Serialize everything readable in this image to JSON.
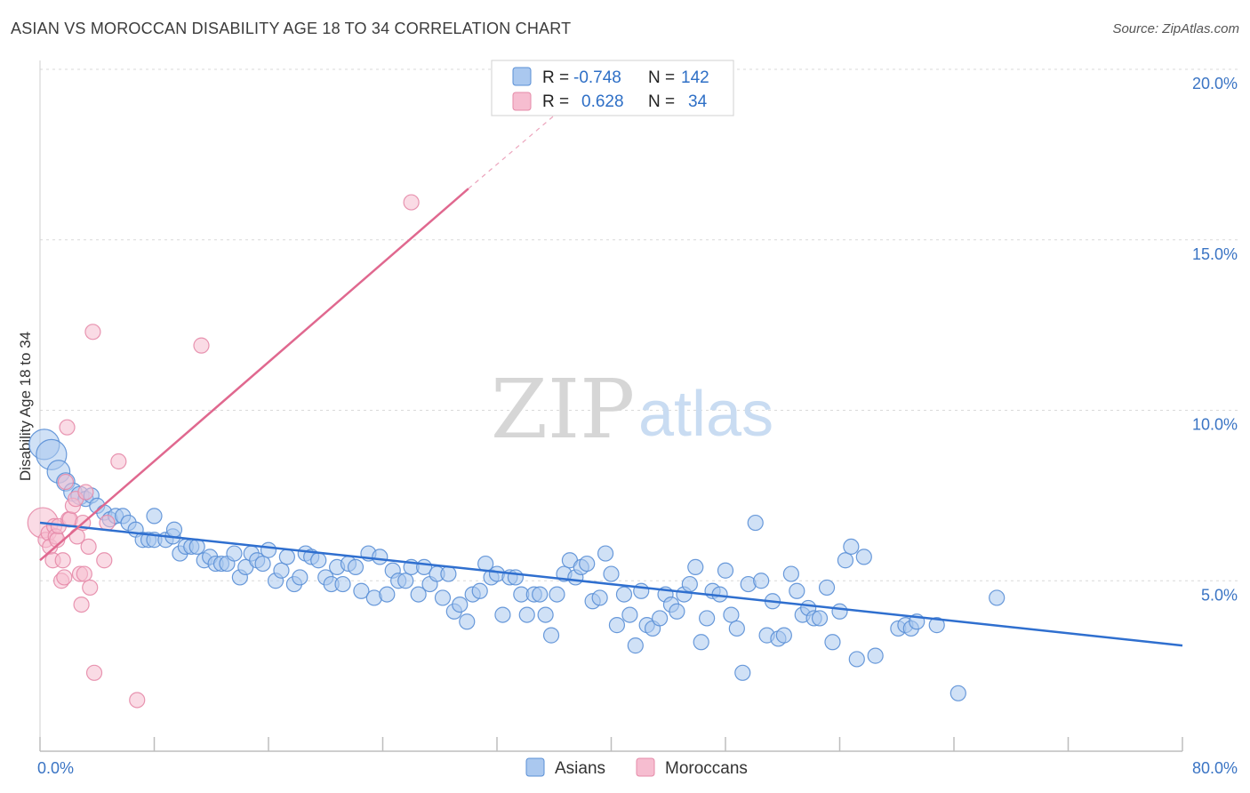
{
  "title": "ASIAN VS MOROCCAN DISABILITY AGE 18 TO 34 CORRELATION CHART",
  "source": "Source: ZipAtlas.com",
  "watermark": {
    "zip": "ZIP",
    "atlas": "atlas"
  },
  "colors": {
    "asian_fill": "#aac8ef",
    "asian_stroke": "#5a8fd6",
    "asian_line": "#2f6fcf",
    "moroccan_fill": "#f6bdd0",
    "moroccan_stroke": "#e58aa8",
    "moroccan_line": "#e0688f",
    "grid": "#d9d9d9",
    "axis_text": "#3a74c4"
  },
  "legend": {
    "rows": [
      {
        "r_label": "R = ",
        "r_value": "-0.748",
        "n_label": "N = ",
        "n_value": "142"
      },
      {
        "r_label": "R = ",
        "r_value": "0.628",
        "n_label": "N = ",
        "n_value": "34"
      }
    ]
  },
  "bottom_legend": [
    "Asians",
    "Moroccans"
  ],
  "chart_data": {
    "type": "scatter",
    "title": "ASIAN VS MOROCCAN DISABILITY AGE 18 TO 34 CORRELATION CHART",
    "xlabel": "",
    "ylabel": "Disability Age 18 to 34",
    "xlim": [
      0,
      80
    ],
    "ylim": [
      0,
      20
    ],
    "x_tick_labels": [
      "0.0%",
      "80.0%"
    ],
    "y_tick_values": [
      5,
      10,
      15,
      20
    ],
    "y_tick_labels": [
      "5.0%",
      "10.0%",
      "15.0%",
      "20.0%"
    ],
    "grid": "horizontal dashed",
    "legend_position": "top-center",
    "series": [
      {
        "name": "Asians",
        "r": -0.748,
        "n": 142,
        "trend": {
          "x": [
            0,
            80
          ],
          "y": [
            6.7,
            3.1
          ]
        },
        "points": [
          {
            "x": 0.3,
            "y": 9.0,
            "s": 2
          },
          {
            "x": 0.8,
            "y": 8.7,
            "s": 2
          },
          {
            "x": 1.3,
            "y": 8.2,
            "s": 1.5
          },
          {
            "x": 1.8,
            "y": 7.9,
            "s": 1.2
          },
          {
            "x": 2.3,
            "y": 7.6,
            "s": 1.2
          },
          {
            "x": 2.8,
            "y": 7.5,
            "s": 1.2
          },
          {
            "x": 3.2,
            "y": 7.4,
            "s": 1
          },
          {
            "x": 3.6,
            "y": 7.5,
            "s": 1
          },
          {
            "x": 4.0,
            "y": 7.2,
            "s": 1
          },
          {
            "x": 4.5,
            "y": 7.0,
            "s": 1
          },
          {
            "x": 4.9,
            "y": 6.8,
            "s": 1
          },
          {
            "x": 5.3,
            "y": 6.9,
            "s": 1
          },
          {
            "x": 5.8,
            "y": 6.9,
            "s": 1
          },
          {
            "x": 6.2,
            "y": 6.7,
            "s": 1
          },
          {
            "x": 6.7,
            "y": 6.5,
            "s": 1
          },
          {
            "x": 7.2,
            "y": 6.2,
            "s": 1
          },
          {
            "x": 7.6,
            "y": 6.2,
            "s": 1
          },
          {
            "x": 8.0,
            "y": 6.2,
            "s": 1
          },
          {
            "x": 8.0,
            "y": 6.9,
            "s": 1
          },
          {
            "x": 8.8,
            "y": 6.2,
            "s": 1
          },
          {
            "x": 9.3,
            "y": 6.3,
            "s": 1
          },
          {
            "x": 9.4,
            "y": 6.5,
            "s": 1
          },
          {
            "x": 9.8,
            "y": 5.8,
            "s": 1
          },
          {
            "x": 10.2,
            "y": 6.0,
            "s": 1
          },
          {
            "x": 10.6,
            "y": 6.0,
            "s": 1
          },
          {
            "x": 11.0,
            "y": 6.0,
            "s": 1
          },
          {
            "x": 11.5,
            "y": 5.6,
            "s": 1
          },
          {
            "x": 11.9,
            "y": 5.7,
            "s": 1
          },
          {
            "x": 12.3,
            "y": 5.5,
            "s": 1
          },
          {
            "x": 12.7,
            "y": 5.5,
            "s": 1
          },
          {
            "x": 13.1,
            "y": 5.5,
            "s": 1
          },
          {
            "x": 13.6,
            "y": 5.8,
            "s": 1
          },
          {
            "x": 14.0,
            "y": 5.1,
            "s": 1
          },
          {
            "x": 14.4,
            "y": 5.4,
            "s": 1
          },
          {
            "x": 14.8,
            "y": 5.8,
            "s": 1
          },
          {
            "x": 15.2,
            "y": 5.6,
            "s": 1
          },
          {
            "x": 15.6,
            "y": 5.5,
            "s": 1
          },
          {
            "x": 16.0,
            "y": 5.9,
            "s": 1
          },
          {
            "x": 16.5,
            "y": 5.0,
            "s": 1
          },
          {
            "x": 16.9,
            "y": 5.3,
            "s": 1
          },
          {
            "x": 17.3,
            "y": 5.7,
            "s": 1
          },
          {
            "x": 17.8,
            "y": 4.9,
            "s": 1
          },
          {
            "x": 18.2,
            "y": 5.1,
            "s": 1
          },
          {
            "x": 18.6,
            "y": 5.8,
            "s": 1
          },
          {
            "x": 19.0,
            "y": 5.7,
            "s": 1
          },
          {
            "x": 19.5,
            "y": 5.6,
            "s": 1
          },
          {
            "x": 20.0,
            "y": 5.1,
            "s": 1
          },
          {
            "x": 20.4,
            "y": 4.9,
            "s": 1
          },
          {
            "x": 20.8,
            "y": 5.4,
            "s": 1
          },
          {
            "x": 21.2,
            "y": 4.9,
            "s": 1
          },
          {
            "x": 21.6,
            "y": 5.5,
            "s": 1
          },
          {
            "x": 22.1,
            "y": 5.4,
            "s": 1
          },
          {
            "x": 22.5,
            "y": 4.7,
            "s": 1
          },
          {
            "x": 23.0,
            "y": 5.8,
            "s": 1
          },
          {
            "x": 23.4,
            "y": 4.5,
            "s": 1
          },
          {
            "x": 23.8,
            "y": 5.7,
            "s": 1
          },
          {
            "x": 24.3,
            "y": 4.6,
            "s": 1
          },
          {
            "x": 24.7,
            "y": 5.3,
            "s": 1
          },
          {
            "x": 25.1,
            "y": 5.0,
            "s": 1
          },
          {
            "x": 25.6,
            "y": 5.0,
            "s": 1
          },
          {
            "x": 26.0,
            "y": 5.4,
            "s": 1
          },
          {
            "x": 26.5,
            "y": 4.6,
            "s": 1
          },
          {
            "x": 26.9,
            "y": 5.4,
            "s": 1
          },
          {
            "x": 27.3,
            "y": 4.9,
            "s": 1
          },
          {
            "x": 27.8,
            "y": 5.2,
            "s": 1
          },
          {
            "x": 28.2,
            "y": 4.5,
            "s": 1
          },
          {
            "x": 28.6,
            "y": 5.2,
            "s": 1
          },
          {
            "x": 29.0,
            "y": 4.1,
            "s": 1
          },
          {
            "x": 29.4,
            "y": 4.3,
            "s": 1
          },
          {
            "x": 29.9,
            "y": 3.8,
            "s": 1
          },
          {
            "x": 30.3,
            "y": 4.6,
            "s": 1
          },
          {
            "x": 30.8,
            "y": 4.7,
            "s": 1
          },
          {
            "x": 31.2,
            "y": 5.5,
            "s": 1
          },
          {
            "x": 31.6,
            "y": 5.1,
            "s": 1
          },
          {
            "x": 32.0,
            "y": 5.2,
            "s": 1
          },
          {
            "x": 32.4,
            "y": 4.0,
            "s": 1
          },
          {
            "x": 32.9,
            "y": 5.1,
            "s": 1
          },
          {
            "x": 33.3,
            "y": 5.1,
            "s": 1
          },
          {
            "x": 33.7,
            "y": 4.6,
            "s": 1
          },
          {
            "x": 34.1,
            "y": 4.0,
            "s": 1
          },
          {
            "x": 34.6,
            "y": 4.6,
            "s": 1
          },
          {
            "x": 35.0,
            "y": 4.6,
            "s": 1
          },
          {
            "x": 35.4,
            "y": 4.0,
            "s": 1
          },
          {
            "x": 35.8,
            "y": 3.4,
            "s": 1
          },
          {
            "x": 36.2,
            "y": 4.6,
            "s": 1
          },
          {
            "x": 36.7,
            "y": 5.2,
            "s": 1
          },
          {
            "x": 37.1,
            "y": 5.6,
            "s": 1
          },
          {
            "x": 37.5,
            "y": 5.1,
            "s": 1
          },
          {
            "x": 37.9,
            "y": 5.4,
            "s": 1
          },
          {
            "x": 38.3,
            "y": 5.5,
            "s": 1
          },
          {
            "x": 38.7,
            "y": 4.4,
            "s": 1
          },
          {
            "x": 39.2,
            "y": 4.5,
            "s": 1
          },
          {
            "x": 39.6,
            "y": 5.8,
            "s": 1
          },
          {
            "x": 40.0,
            "y": 5.2,
            "s": 1
          },
          {
            "x": 40.4,
            "y": 3.7,
            "s": 1
          },
          {
            "x": 40.9,
            "y": 4.6,
            "s": 1
          },
          {
            "x": 41.3,
            "y": 4.0,
            "s": 1
          },
          {
            "x": 41.7,
            "y": 3.1,
            "s": 1
          },
          {
            "x": 42.1,
            "y": 4.7,
            "s": 1
          },
          {
            "x": 42.5,
            "y": 3.7,
            "s": 1
          },
          {
            "x": 42.9,
            "y": 3.6,
            "s": 1
          },
          {
            "x": 43.4,
            "y": 3.9,
            "s": 1
          },
          {
            "x": 43.8,
            "y": 4.6,
            "s": 1
          },
          {
            "x": 44.2,
            "y": 4.3,
            "s": 1
          },
          {
            "x": 44.6,
            "y": 4.1,
            "s": 1
          },
          {
            "x": 45.1,
            "y": 4.6,
            "s": 1
          },
          {
            "x": 45.5,
            "y": 4.9,
            "s": 1
          },
          {
            "x": 45.9,
            "y": 5.4,
            "s": 1
          },
          {
            "x": 46.3,
            "y": 3.2,
            "s": 1
          },
          {
            "x": 46.7,
            "y": 3.9,
            "s": 1
          },
          {
            "x": 47.1,
            "y": 4.7,
            "s": 1
          },
          {
            "x": 47.6,
            "y": 4.6,
            "s": 1
          },
          {
            "x": 48.0,
            "y": 5.3,
            "s": 1
          },
          {
            "x": 48.4,
            "y": 4.0,
            "s": 1
          },
          {
            "x": 48.8,
            "y": 3.6,
            "s": 1
          },
          {
            "x": 49.2,
            "y": 2.3,
            "s": 1
          },
          {
            "x": 49.6,
            "y": 4.9,
            "s": 1
          },
          {
            "x": 50.1,
            "y": 6.7,
            "s": 1
          },
          {
            "x": 50.5,
            "y": 5.0,
            "s": 1
          },
          {
            "x": 50.9,
            "y": 3.4,
            "s": 1
          },
          {
            "x": 51.3,
            "y": 4.4,
            "s": 1
          },
          {
            "x": 51.7,
            "y": 3.3,
            "s": 1
          },
          {
            "x": 52.1,
            "y": 3.4,
            "s": 1
          },
          {
            "x": 52.6,
            "y": 5.2,
            "s": 1
          },
          {
            "x": 53.0,
            "y": 4.7,
            "s": 1
          },
          {
            "x": 53.4,
            "y": 4.0,
            "s": 1
          },
          {
            "x": 53.8,
            "y": 4.2,
            "s": 1
          },
          {
            "x": 54.2,
            "y": 3.9,
            "s": 1
          },
          {
            "x": 54.6,
            "y": 3.9,
            "s": 1
          },
          {
            "x": 55.1,
            "y": 4.8,
            "s": 1
          },
          {
            "x": 55.5,
            "y": 3.2,
            "s": 1
          },
          {
            "x": 56.0,
            "y": 4.1,
            "s": 1
          },
          {
            "x": 56.4,
            "y": 5.6,
            "s": 1
          },
          {
            "x": 56.8,
            "y": 6.0,
            "s": 1
          },
          {
            "x": 57.2,
            "y": 2.7,
            "s": 1
          },
          {
            "x": 57.7,
            "y": 5.7,
            "s": 1
          },
          {
            "x": 58.5,
            "y": 2.8,
            "s": 1
          },
          {
            "x": 60.1,
            "y": 3.6,
            "s": 1
          },
          {
            "x": 60.6,
            "y": 3.7,
            "s": 1
          },
          {
            "x": 61.0,
            "y": 3.6,
            "s": 1
          },
          {
            "x": 61.4,
            "y": 3.8,
            "s": 1
          },
          {
            "x": 62.8,
            "y": 3.7,
            "s": 1
          },
          {
            "x": 64.3,
            "y": 1.7,
            "s": 1
          },
          {
            "x": 67.0,
            "y": 4.5,
            "s": 1
          }
        ]
      },
      {
        "name": "Moroccans",
        "r": 0.628,
        "n": 34,
        "trend": {
          "x": [
            0,
            30
          ],
          "y": [
            5.6,
            16.5
          ]
        },
        "trend_dashed": {
          "x": [
            30,
            37
          ],
          "y": [
            16.5,
            19.0
          ]
        },
        "points": [
          {
            "x": 0.2,
            "y": 6.7,
            "s": 2
          },
          {
            "x": 0.4,
            "y": 6.2,
            "s": 1
          },
          {
            "x": 0.6,
            "y": 6.4,
            "s": 1
          },
          {
            "x": 0.7,
            "y": 6.0,
            "s": 1
          },
          {
            "x": 0.9,
            "y": 5.6,
            "s": 1
          },
          {
            "x": 1.0,
            "y": 6.6,
            "s": 1
          },
          {
            "x": 1.1,
            "y": 6.3,
            "s": 1
          },
          {
            "x": 1.2,
            "y": 6.2,
            "s": 1
          },
          {
            "x": 1.3,
            "y": 6.6,
            "s": 1
          },
          {
            "x": 1.5,
            "y": 5.0,
            "s": 1
          },
          {
            "x": 1.6,
            "y": 5.6,
            "s": 1
          },
          {
            "x": 1.7,
            "y": 5.1,
            "s": 1
          },
          {
            "x": 1.8,
            "y": 7.9,
            "s": 1
          },
          {
            "x": 1.9,
            "y": 9.5,
            "s": 1
          },
          {
            "x": 2.0,
            "y": 6.8,
            "s": 1
          },
          {
            "x": 2.1,
            "y": 6.8,
            "s": 1
          },
          {
            "x": 2.3,
            "y": 7.2,
            "s": 1
          },
          {
            "x": 2.5,
            "y": 7.4,
            "s": 1
          },
          {
            "x": 2.6,
            "y": 6.3,
            "s": 1
          },
          {
            "x": 2.8,
            "y": 5.2,
            "s": 1
          },
          {
            "x": 2.9,
            "y": 4.3,
            "s": 1
          },
          {
            "x": 3.0,
            "y": 6.7,
            "s": 1
          },
          {
            "x": 3.1,
            "y": 5.2,
            "s": 1
          },
          {
            "x": 3.2,
            "y": 7.6,
            "s": 1
          },
          {
            "x": 3.4,
            "y": 6.0,
            "s": 1
          },
          {
            "x": 3.5,
            "y": 4.8,
            "s": 1
          },
          {
            "x": 3.7,
            "y": 12.3,
            "s": 1
          },
          {
            "x": 3.8,
            "y": 2.3,
            "s": 1
          },
          {
            "x": 4.5,
            "y": 5.6,
            "s": 1
          },
          {
            "x": 4.7,
            "y": 6.7,
            "s": 1
          },
          {
            "x": 5.5,
            "y": 8.5,
            "s": 1
          },
          {
            "x": 6.8,
            "y": 1.5,
            "s": 1
          },
          {
            "x": 11.3,
            "y": 11.9,
            "s": 1
          },
          {
            "x": 26.0,
            "y": 16.1,
            "s": 1
          }
        ]
      }
    ]
  }
}
